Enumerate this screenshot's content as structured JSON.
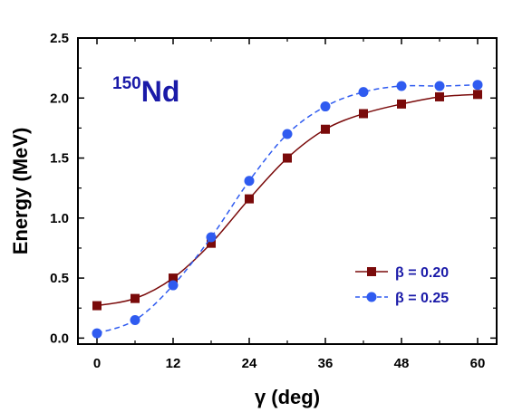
{
  "chart_data": {
    "type": "line",
    "annotation": {
      "mass_number": "150",
      "element": "Nd",
      "color": "#1a1aa8"
    },
    "xlabel": "γ (deg)",
    "ylabel": "Energy (MeV)",
    "xlim": [
      -3,
      63
    ],
    "ylim": [
      -0.05,
      2.5
    ],
    "xticks": [
      0,
      12,
      24,
      36,
      48,
      60
    ],
    "xtick_labels": [
      "0",
      "12",
      "24",
      "36",
      "48",
      "60"
    ],
    "yticks": [
      0.0,
      0.5,
      1.0,
      1.5,
      2.0,
      2.5
    ],
    "ytick_labels": [
      "0.0",
      "0.5",
      "1.0",
      "1.5",
      "2.0",
      "2.5"
    ],
    "grid": false,
    "legend_position": "lower-right",
    "x": [
      0,
      6,
      12,
      18,
      24,
      30,
      36,
      42,
      48,
      54,
      60
    ],
    "series": [
      {
        "name": "β = 0.20",
        "marker": "square",
        "line_style": "solid",
        "color": "#7a0a0a",
        "values": [
          0.27,
          0.33,
          0.5,
          0.79,
          1.16,
          1.5,
          1.74,
          1.87,
          1.95,
          2.01,
          2.03
        ]
      },
      {
        "name": "β = 0.25",
        "marker": "circle",
        "line_style": "dashed",
        "color": "#2f5bf0",
        "values": [
          0.04,
          0.15,
          0.44,
          0.84,
          1.31,
          1.7,
          1.93,
          2.05,
          2.1,
          2.1,
          2.11
        ]
      }
    ]
  }
}
